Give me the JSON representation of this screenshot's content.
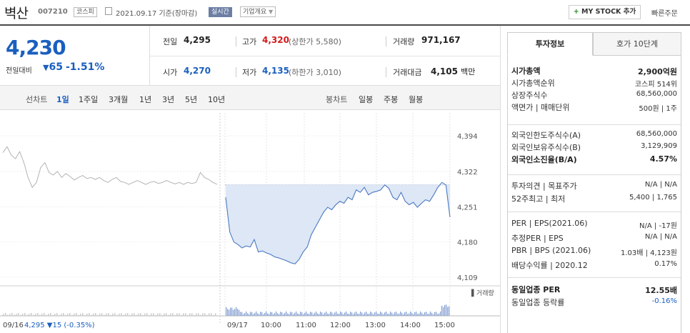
{
  "header": {
    "name": "벽산",
    "code": "007210",
    "market": "코스피",
    "date": "2021.09.17 기준(장마감)",
    "live": "실시간",
    "corp": "기업개요",
    "mystock": "MY STOCK 추가",
    "quick": "빠른주문"
  },
  "price": {
    "current": "4,230",
    "change_label": "전일대비",
    "change": "65",
    "pct": "-1.51%"
  },
  "stats": {
    "prev_label": "전일",
    "prev": "4,295",
    "high_label": "고가",
    "high": "4,320",
    "upper_label": "(상한가",
    "upper": "5,580)",
    "vol_label": "거래량",
    "vol": "971,167",
    "open_label": "시가",
    "open": "4,270",
    "low_label": "저가",
    "low": "4,135",
    "lower_label": "(하한가",
    "lower": "3,010)",
    "amt_label": "거래대금",
    "amt": "4,105",
    "amt_unit": "백만"
  },
  "period": {
    "line_label": "선차트",
    "line_items": [
      "1일",
      "1주일",
      "3개월",
      "1년",
      "3년",
      "5년",
      "10년"
    ],
    "candle_label": "봉차트",
    "candle_items": [
      "일봉",
      "주봉",
      "월봉"
    ]
  },
  "chart_data": {
    "type": "line",
    "y_ticks": [
      "4,394",
      "4,322",
      "4,251",
      "4,180",
      "4,109"
    ],
    "y_range": [
      4109,
      4394
    ],
    "baseline": 4295,
    "x_labels": [
      "09/17",
      "10:00",
      "11:00",
      "12:00",
      "13:00",
      "14:00",
      "15:00"
    ],
    "prev_day_label": "09/16",
    "prev_series": [
      4360,
      4372,
      4355,
      4348,
      4362,
      4340,
      4310,
      4290,
      4300,
      4330,
      4340,
      4320,
      4315,
      4322,
      4310,
      4318,
      4312,
      4305,
      4310,
      4314,
      4308,
      4310,
      4306,
      4310,
      4304,
      4300,
      4306,
      4310,
      4302,
      4300,
      4296,
      4300,
      4304,
      4300,
      4296,
      4300,
      4302,
      4298,
      4300,
      4304,
      4300,
      4297,
      4300,
      4296,
      4300,
      4298,
      4300,
      4320,
      4310,
      4306,
      4300,
      4296
    ],
    "today_series": [
      4270,
      4200,
      4180,
      4175,
      4168,
      4172,
      4170,
      4185,
      4160,
      4162,
      4158,
      4155,
      4150,
      4148,
      4145,
      4142,
      4138,
      4136,
      4145,
      4160,
      4170,
      4195,
      4210,
      4225,
      4240,
      4250,
      4245,
      4255,
      4262,
      4258,
      4270,
      4265,
      4285,
      4280,
      4290,
      4275,
      4280,
      4282,
      4285,
      4295,
      4288,
      4270,
      4265,
      4280,
      4262,
      4255,
      4260,
      4250,
      4258,
      4265,
      4262,
      4275,
      4290,
      4300,
      4295,
      4230
    ],
    "volume_label": "거래량",
    "summary": {
      "date": "09/16",
      "close": "4,295",
      "chg": "▼15",
      "pct": "(-0.35%)"
    }
  },
  "tabs": {
    "on": "투자정보",
    "off": "호가 10단계"
  },
  "info": {
    "g1": [
      {
        "l": "시가총액",
        "v": "2,900억원",
        "bold": true
      },
      {
        "l": "시가총액순위",
        "v": "코스피 514위"
      },
      {
        "l": "상장주식수",
        "v": "68,560,000"
      },
      {
        "l": "액면가 | 매매단위",
        "v": "500원 | 1주"
      }
    ],
    "g2": [
      {
        "l": "외국인한도주식수(A)",
        "v": "68,560,000"
      },
      {
        "l": "외국인보유주식수(B)",
        "v": "3,129,909"
      },
      {
        "l": "외국인소진율(B/A)",
        "v": "4.57%",
        "bold": true
      }
    ],
    "g3": [
      {
        "l": "투자의견 | 목표주가",
        "v": "N/A | N/A"
      },
      {
        "l": "52주최고 | 최저",
        "v": "5,400 | 1,765"
      }
    ],
    "g4": [
      {
        "l": "PER | EPS(2021.06)",
        "v": "N/A | -17원"
      },
      {
        "l": "추정PER | EPS",
        "v": "N/A | N/A"
      },
      {
        "l": "PBR | BPS (2021.06)",
        "v": "1.03배 | 4,123원"
      },
      {
        "l": "배당수익률 | 2020.12",
        "v": "0.17%"
      }
    ],
    "g5": [
      {
        "l": "동일업종 PER",
        "v": "12.55배",
        "bold": true
      },
      {
        "l": "동일업종 등락률",
        "v": "-0.16%",
        "blue": true
      }
    ]
  }
}
